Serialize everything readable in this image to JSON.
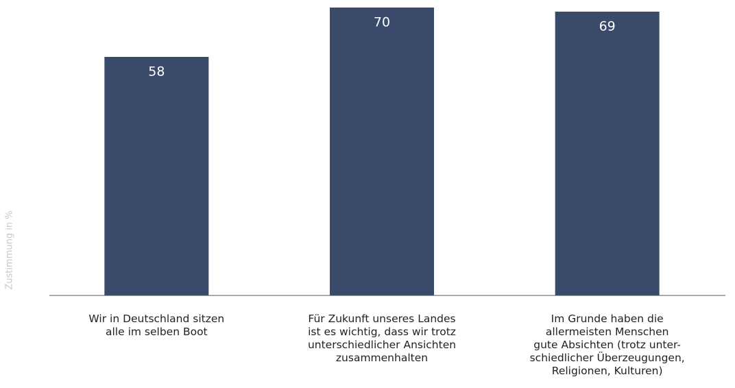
{
  "chart_data": {
    "type": "bar",
    "y_label": "Zustimmung in %",
    "categories": [
      "Wir in Deutschland sitzen\nalle im selben Boot",
      "Für Zukunft unseres Landes\nist es wichtig, dass wir trotz\nunterschiedlicher Ansichten\nzusammenhalten",
      "Im Grunde haben die\nallermeisten Menschen\ngute Absichten (trotz unter-\nschiedlicher Überzeugungen,\nReligionen, Kulturen)"
    ],
    "values": [
      58,
      70,
      69
    ],
    "color": "#3a4a6b",
    "ylim": [
      0,
      70
    ]
  }
}
